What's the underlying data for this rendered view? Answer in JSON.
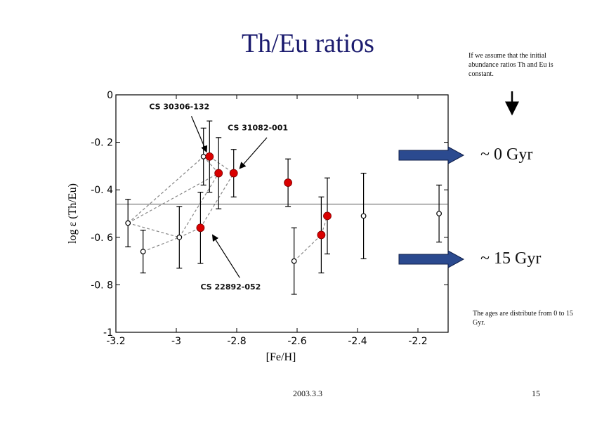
{
  "slide": {
    "title": "Th/Eu ratios",
    "note_top": "If we assume that the initial abundance ratios Th and Eu is constant.",
    "note_bottom": "The ages are distribute from 0 to 15 Gyr.",
    "gyr_top": "~ 0 Gyr",
    "gyr_bottom": "~ 15 Gyr",
    "footer_date": "2003.3.3",
    "page_number": "15"
  },
  "colors": {
    "title": "#1b1b6e",
    "red_point": "#d90000",
    "arrow_fill": "#2b4a8f",
    "dashed_line": "#888888"
  },
  "chart_data": {
    "type": "scatter",
    "xlabel": "[Fe/H]",
    "ylabel": "log ε (Th/Eu)",
    "xlim": [
      -3.2,
      -2.1
    ],
    "ylim": [
      -1,
      0
    ],
    "x_ticks": [
      -3.2,
      -3.0,
      -2.8,
      -2.6,
      -2.4,
      -2.2
    ],
    "x_tick_labels": [
      "-3.2",
      "-3",
      "-2.8",
      "-2.6",
      "-2.4",
      "-2.2"
    ],
    "y_ticks": [
      0,
      -0.2,
      -0.4,
      -0.6,
      -0.8,
      -1
    ],
    "y_tick_labels": [
      "0",
      "-0. 2",
      "-0. 4",
      "-0. 6",
      "-0. 8",
      "-1"
    ],
    "grid": false,
    "reference_line_y": -0.46,
    "series": [
      {
        "marker": "open",
        "points": [
          {
            "x": -3.16,
            "y": -0.54,
            "err": 0.1
          },
          {
            "x": -3.11,
            "y": -0.66,
            "err": 0.09
          },
          {
            "x": -2.99,
            "y": -0.6,
            "err": 0.13
          },
          {
            "x": -2.91,
            "y": -0.26,
            "err": 0.12
          },
          {
            "x": -2.61,
            "y": -0.7,
            "err": 0.14
          },
          {
            "x": -2.38,
            "y": -0.51,
            "err": 0.18
          },
          {
            "x": -2.13,
            "y": -0.5,
            "err": 0.12
          }
        ]
      },
      {
        "marker": "filled",
        "points": [
          {
            "x": -2.89,
            "y": -0.26,
            "err": 0.15
          },
          {
            "x": -2.86,
            "y": -0.33,
            "err": 0.15
          },
          {
            "x": -2.81,
            "y": -0.33,
            "err": 0.1
          },
          {
            "x": -2.92,
            "y": -0.56,
            "err": 0.15
          },
          {
            "x": -2.63,
            "y": -0.37,
            "err": 0.1
          },
          {
            "x": -2.52,
            "y": -0.59,
            "err": 0.16
          },
          {
            "x": -2.5,
            "y": -0.51,
            "err": 0.16
          }
        ]
      }
    ],
    "connectors": [
      [
        [
          -3.16,
          -0.54
        ],
        [
          -2.91,
          -0.26
        ]
      ],
      [
        [
          -3.16,
          -0.54
        ],
        [
          -2.86,
          -0.33
        ]
      ],
      [
        [
          -3.16,
          -0.54
        ],
        [
          -2.99,
          -0.6
        ]
      ],
      [
        [
          -3.11,
          -0.66
        ],
        [
          -2.99,
          -0.6
        ]
      ],
      [
        [
          -2.99,
          -0.6
        ],
        [
          -2.92,
          -0.56
        ]
      ],
      [
        [
          -2.99,
          -0.6
        ],
        [
          -2.86,
          -0.33
        ]
      ],
      [
        [
          -2.92,
          -0.56
        ],
        [
          -2.81,
          -0.33
        ]
      ],
      [
        [
          -2.89,
          -0.26
        ],
        [
          -2.81,
          -0.33
        ]
      ],
      [
        [
          -2.91,
          -0.26
        ],
        [
          -2.86,
          -0.33
        ]
      ],
      [
        [
          -2.61,
          -0.7
        ],
        [
          -2.52,
          -0.59
        ]
      ],
      [
        [
          -2.52,
          -0.59
        ],
        [
          -2.5,
          -0.51
        ]
      ]
    ],
    "annotations": [
      {
        "text": "CS 30306-132",
        "label_x": -2.99,
        "label_y": -0.06,
        "arrow_from": [
          -2.95,
          -0.09
        ],
        "arrow_to": [
          -2.9,
          -0.24
        ]
      },
      {
        "text": "CS 31082-001",
        "label_x": -2.73,
        "label_y": -0.15,
        "arrow_from": [
          -2.7,
          -0.18
        ],
        "arrow_to": [
          -2.79,
          -0.31
        ]
      },
      {
        "text": "CS 22892-052",
        "label_x": -2.82,
        "label_y": -0.82,
        "arrow_from": [
          -2.79,
          -0.77
        ],
        "arrow_to": [
          -2.88,
          -0.59
        ]
      }
    ]
  }
}
